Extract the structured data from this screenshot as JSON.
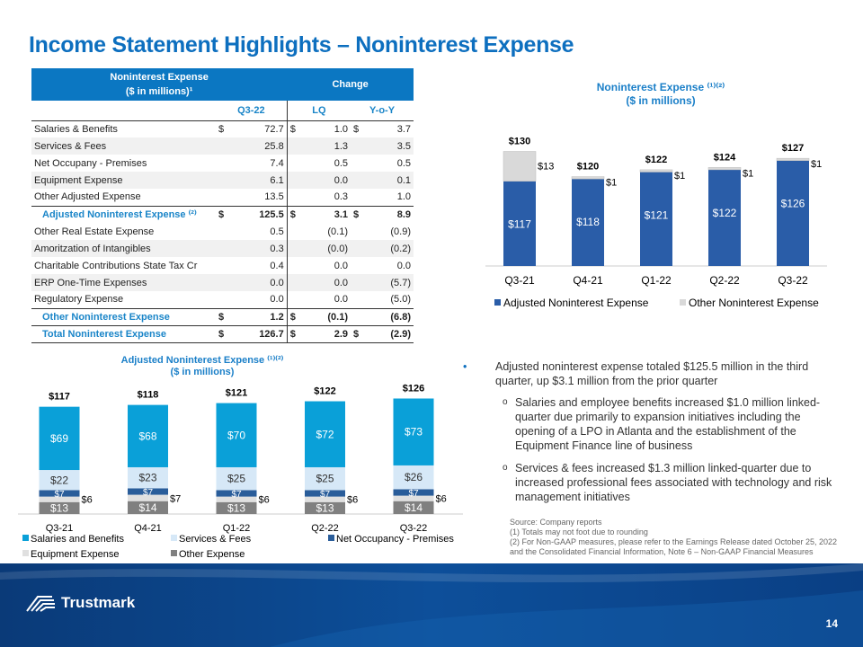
{
  "title": "Income Statement Highlights – Noninterest Expense",
  "table": {
    "header_title": "Noninterest Expense",
    "header_sub": "($ in millions)¹",
    "change": "Change",
    "cols": [
      "Q3-22",
      "LQ",
      "Y-o-Y"
    ],
    "rows": [
      {
        "label": "Salaries & Benefits",
        "d1": "$",
        "q": "72.7",
        "d2": "$",
        "lq": "1.0",
        "d3": "$",
        "yoy": "3.7"
      },
      {
        "label": "Services & Fees",
        "d1": "",
        "q": "25.8",
        "d2": "",
        "lq": "1.3",
        "d3": "",
        "yoy": "3.5"
      },
      {
        "label": "Net Occupany - Premises",
        "d1": "",
        "q": "7.4",
        "d2": "",
        "lq": "0.5",
        "d3": "",
        "yoy": "0.5"
      },
      {
        "label": "Equipment Expense",
        "d1": "",
        "q": "6.1",
        "d2": "",
        "lq": "0.0",
        "d3": "",
        "yoy": "0.1"
      },
      {
        "label": "Other Adjusted Expense",
        "d1": "",
        "q": "13.5",
        "d2": "",
        "lq": "0.3",
        "d3": "",
        "yoy": "1.0"
      },
      {
        "label": "Adjusted Noninterest Expense ⁽²⁾",
        "d1": "$",
        "q": "125.5",
        "d2": "$",
        "lq": "3.1",
        "d3": "$",
        "yoy": "8.9",
        "sub": true
      },
      {
        "label": "Other Real Estate Expense",
        "d1": "",
        "q": "0.5",
        "d2": "",
        "lq": "(0.1)",
        "d3": "",
        "yoy": "(0.9)"
      },
      {
        "label": "Amoritzation of Intangibles",
        "d1": "",
        "q": "0.3",
        "d2": "",
        "lq": "(0.0)",
        "d3": "",
        "yoy": "(0.2)"
      },
      {
        "label": "Charitable Contributions State Tax Cr",
        "d1": "",
        "q": "0.4",
        "d2": "",
        "lq": "0.0",
        "d3": "",
        "yoy": "0.0"
      },
      {
        "label": "ERP One-Time Expenses",
        "d1": "",
        "q": "0.0",
        "d2": "",
        "lq": "0.0",
        "d3": "",
        "yoy": "(5.7)"
      },
      {
        "label": "Regulatory Expense",
        "d1": "",
        "q": "0.0",
        "d2": "",
        "lq": "0.0",
        "d3": "",
        "yoy": "(5.0)"
      },
      {
        "label": "Other Noninterest Expense",
        "d1": "$",
        "q": "1.2",
        "d2": "$",
        "lq": "(0.1)",
        "d3": "",
        "yoy": "(6.8)",
        "sub": true
      },
      {
        "label": "Total Noninterest Expense",
        "d1": "$",
        "q": "126.7",
        "d2": "$",
        "lq": "2.9",
        "d3": "$",
        "yoy": "(2.9)",
        "sub": true,
        "last": true
      }
    ]
  },
  "chart_data": [
    {
      "type": "bar",
      "stacked": true,
      "title": "Noninterest Expense ⁽¹⁾⁽²⁾",
      "subtitle": "($ in millions)",
      "categories": [
        "Q3-21",
        "Q4-21",
        "Q1-22",
        "Q2-22",
        "Q3-22"
      ],
      "series": [
        {
          "name": "Adjusted Noninterest Expense",
          "color": "#2a5da8",
          "values": [
            117,
            118,
            121,
            122,
            126
          ]
        },
        {
          "name": "Other Noninterest Expense",
          "color": "#d9d9d9",
          "values": [
            13,
            1,
            1,
            1,
            1
          ]
        }
      ],
      "totals": [
        130,
        120,
        122,
        124,
        127
      ],
      "legend": "bottom"
    },
    {
      "type": "bar",
      "stacked": true,
      "title": "Adjusted Noninterest Expense ⁽¹⁾⁽²⁾",
      "subtitle": "($ in millions)",
      "categories": [
        "Q3-21",
        "Q4-21",
        "Q1-22",
        "Q2-22",
        "Q3-22"
      ],
      "series": [
        {
          "name": "Other Expense",
          "color": "#808080",
          "values": [
            13,
            14,
            13,
            13,
            14
          ]
        },
        {
          "name": "Equipment Expense",
          "color": "#e0e0e0",
          "values": [
            6,
            7,
            6,
            6,
            6
          ]
        },
        {
          "name": "Net Occupancy - Premises",
          "color": "#2a5d9a",
          "values": [
            7,
            7,
            7,
            7,
            7
          ]
        },
        {
          "name": "Services & Fees",
          "color": "#d6e8f7",
          "values": [
            22,
            23,
            25,
            25,
            26
          ]
        },
        {
          "name": "Salaries and Benefits",
          "color": "#0aa0d8",
          "values": [
            69,
            68,
            70,
            72,
            73
          ]
        }
      ],
      "totals": [
        117,
        118,
        121,
        122,
        126
      ],
      "legend_order": [
        "Salaries and Benefits",
        "Services & Fees",
        "Net Occupancy - Premises",
        "Equipment Expense",
        "Other Expense"
      ],
      "legend": "bottom"
    }
  ],
  "bullets": {
    "main": "Adjusted noninterest expense totaled $125.5 million in the third quarter, up $3.1 million from the prior quarter",
    "sub": [
      "Salaries and employee benefits increased $1.0 million linked-quarter due primarily to expansion initiatives including the opening of a LPO in Atlanta and the establishment of the Equipment Finance line of business",
      "Services & fees increased $1.3 million linked-quarter due to increased professional fees associated with technology and risk management initiatives"
    ],
    "marker": "o"
  },
  "notes": [
    "Source: Company reports",
    "(1) Totals may not foot due to rounding",
    "(2) For Non-GAAP measures, please refer to the Earnings Release dated October 25, 2022",
    "and the Consolidated Financial Information, Note 6 – Non-GAAP Financial Measures"
  ],
  "footer": {
    "logo": "Trustmark",
    "page": "14"
  }
}
